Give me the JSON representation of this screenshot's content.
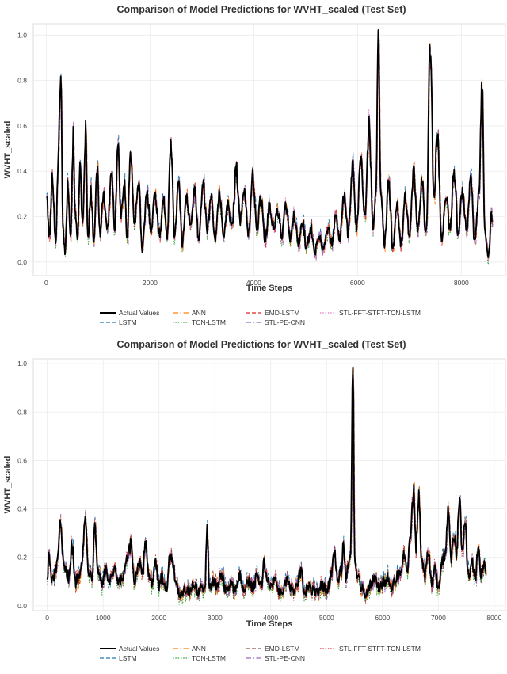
{
  "figure": {
    "legend_labels": [
      "Actual Values",
      "LSTM",
      "ANN",
      "TCN-LSTM",
      "EMD-LSTM",
      "STL-PE-CNN",
      "STL-FFT-STFT-TCN-LSTM"
    ]
  },
  "chart_data": [
    {
      "type": "line",
      "title": "Comparison of Model Predictions for WVHT_scaled (Test Set)",
      "xlabel": "Time Steps",
      "ylabel": "WVHT_scaled",
      "xlim": [
        -250,
        8850
      ],
      "ylim": [
        -0.06,
        1.05
      ],
      "xticks": [
        0,
        2000,
        4000,
        6000,
        8000
      ],
      "yticks": [
        0.0,
        0.2,
        0.4,
        0.6,
        0.8,
        1.0
      ],
      "grid": true,
      "legend_position": "bottom-center",
      "series": [
        {
          "name": "Actual Values",
          "color": "#000000",
          "style": "solid"
        },
        {
          "name": "LSTM",
          "color": "#1f77b4",
          "style": "dashed"
        },
        {
          "name": "ANN",
          "color": "#ff7f0e",
          "style": "dashdot"
        },
        {
          "name": "TCN-LSTM",
          "color": "#2ca02c",
          "style": "dotted"
        },
        {
          "name": "EMD-LSTM",
          "color": "#d62728",
          "style": "dashed"
        },
        {
          "name": "STL-PE-CNN",
          "color": "#9467bd",
          "style": "dashdot"
        },
        {
          "name": "STL-FFT-STFT-TCN-LSTM",
          "color": "#e377c2",
          "style": "dotted"
        }
      ],
      "actual_anchors": [
        [
          0,
          0.3
        ],
        [
          60,
          0.12
        ],
        [
          120,
          0.38
        ],
        [
          180,
          0.08
        ],
        [
          230,
          0.45
        ],
        [
          280,
          0.85
        ],
        [
          320,
          0.15
        ],
        [
          360,
          0.05
        ],
        [
          420,
          0.35
        ],
        [
          470,
          0.12
        ],
        [
          520,
          0.55
        ],
        [
          560,
          0.2
        ],
        [
          600,
          0.1
        ],
        [
          650,
          0.42
        ],
        [
          700,
          0.15
        ],
        [
          760,
          0.58
        ],
        [
          800,
          0.1
        ],
        [
          860,
          0.3
        ],
        [
          920,
          0.08
        ],
        [
          980,
          0.42
        ],
        [
          1040,
          0.12
        ],
        [
          1100,
          0.3
        ],
        [
          1180,
          0.15
        ],
        [
          1260,
          0.4
        ],
        [
          1320,
          0.12
        ],
        [
          1380,
          0.55
        ],
        [
          1440,
          0.2
        ],
        [
          1500,
          0.35
        ],
        [
          1560,
          0.1
        ],
        [
          1620,
          0.48
        ],
        [
          1700,
          0.18
        ],
        [
          1780,
          0.35
        ],
        [
          1850,
          0.05
        ],
        [
          1940,
          0.3
        ],
        [
          2020,
          0.15
        ],
        [
          2100,
          0.3
        ],
        [
          2180,
          0.12
        ],
        [
          2260,
          0.28
        ],
        [
          2330,
          0.1
        ],
        [
          2400,
          0.55
        ],
        [
          2470,
          0.12
        ],
        [
          2550,
          0.35
        ],
        [
          2620,
          0.08
        ],
        [
          2700,
          0.3
        ],
        [
          2780,
          0.15
        ],
        [
          2860,
          0.32
        ],
        [
          2940,
          0.1
        ],
        [
          3020,
          0.35
        ],
        [
          3100,
          0.15
        ],
        [
          3180,
          0.28
        ],
        [
          3260,
          0.1
        ],
        [
          3340,
          0.3
        ],
        [
          3420,
          0.12
        ],
        [
          3500,
          0.25
        ],
        [
          3580,
          0.15
        ],
        [
          3660,
          0.42
        ],
        [
          3740,
          0.18
        ],
        [
          3820,
          0.32
        ],
        [
          3900,
          0.12
        ],
        [
          3980,
          0.38
        ],
        [
          4060,
          0.15
        ],
        [
          4140,
          0.28
        ],
        [
          4220,
          0.1
        ],
        [
          4300,
          0.25
        ],
        [
          4380,
          0.15
        ],
        [
          4460,
          0.22
        ],
        [
          4540,
          0.12
        ],
        [
          4620,
          0.25
        ],
        [
          4700,
          0.1
        ],
        [
          4780,
          0.2
        ],
        [
          4860,
          0.08
        ],
        [
          4940,
          0.18
        ],
        [
          5020,
          0.06
        ],
        [
          5100,
          0.15
        ],
        [
          5180,
          0.05
        ],
        [
          5260,
          0.12
        ],
        [
          5340,
          0.06
        ],
        [
          5420,
          0.15
        ],
        [
          5500,
          0.08
        ],
        [
          5580,
          0.2
        ],
        [
          5660,
          0.1
        ],
        [
          5740,
          0.3
        ],
        [
          5820,
          0.12
        ],
        [
          5900,
          0.42
        ],
        [
          5980,
          0.15
        ],
        [
          6060,
          0.45
        ],
        [
          6140,
          0.2
        ],
        [
          6220,
          0.6
        ],
        [
          6300,
          0.15
        ],
        [
          6350,
          0.3
        ],
        [
          6400,
          0.98
        ],
        [
          6450,
          0.3
        ],
        [
          6520,
          0.08
        ],
        [
          6600,
          0.35
        ],
        [
          6680,
          0.05
        ],
        [
          6760,
          0.25
        ],
        [
          6840,
          0.08
        ],
        [
          6920,
          0.3
        ],
        [
          7000,
          0.1
        ],
        [
          7080,
          0.4
        ],
        [
          7160,
          0.15
        ],
        [
          7240,
          0.35
        ],
        [
          7320,
          0.12
        ],
        [
          7400,
          0.94
        ],
        [
          7470,
          0.3
        ],
        [
          7540,
          0.55
        ],
        [
          7620,
          0.1
        ],
        [
          7700,
          0.3
        ],
        [
          7780,
          0.15
        ],
        [
          7860,
          0.4
        ],
        [
          7940,
          0.12
        ],
        [
          8020,
          0.32
        ],
        [
          8100,
          0.15
        ],
        [
          8180,
          0.38
        ],
        [
          8260,
          0.08
        ],
        [
          8340,
          0.3
        ],
        [
          8400,
          0.78
        ],
        [
          8450,
          0.15
        ],
        [
          8520,
          0.02
        ],
        [
          8580,
          0.2
        ],
        [
          8600,
          0.18
        ]
      ]
    },
    {
      "type": "line",
      "title": "Comparison of Model Predictions for WVHT_scaled (Test Set)",
      "xlabel": "Time Steps",
      "ylabel": "WVHT_scaled",
      "xlim": [
        -250,
        8200
      ],
      "ylim": [
        -0.02,
        1.02
      ],
      "xticks": [
        0,
        1000,
        2000,
        3000,
        4000,
        5000,
        6000,
        7000,
        8000
      ],
      "yticks": [
        0.0,
        0.2,
        0.4,
        0.6,
        0.8,
        1.0
      ],
      "grid": true,
      "legend_position": "bottom-center",
      "series": [
        {
          "name": "Actual Values",
          "color": "#000000",
          "style": "solid"
        },
        {
          "name": "LSTM",
          "color": "#1f77b4",
          "style": "dashed"
        },
        {
          "name": "ANN",
          "color": "#ff7f0e",
          "style": "dashdot"
        },
        {
          "name": "TCN-LSTM",
          "color": "#2ca02c",
          "style": "dotted"
        },
        {
          "name": "EMD-LSTM",
          "color": "#8c564b",
          "style": "dashed"
        },
        {
          "name": "STL-PE-CNN",
          "color": "#9467bd",
          "style": "dashdot"
        },
        {
          "name": "STL-FFT-STFT-TCN-LSTM",
          "color": "#d62728",
          "style": "dotted"
        }
      ],
      "actual_anchors": [
        [
          0,
          0.12
        ],
        [
          30,
          0.21
        ],
        [
          80,
          0.1
        ],
        [
          160,
          0.15
        ],
        [
          230,
          0.32
        ],
        [
          300,
          0.15
        ],
        [
          380,
          0.12
        ],
        [
          440,
          0.25
        ],
        [
          500,
          0.1
        ],
        [
          560,
          0.12
        ],
        [
          620,
          0.2
        ],
        [
          680,
          0.35
        ],
        [
          740,
          0.15
        ],
        [
          800,
          0.12
        ],
        [
          850,
          0.36
        ],
        [
          900,
          0.15
        ],
        [
          980,
          0.1
        ],
        [
          1050,
          0.14
        ],
        [
          1120,
          0.1
        ],
        [
          1200,
          0.14
        ],
        [
          1280,
          0.09
        ],
        [
          1360,
          0.12
        ],
        [
          1440,
          0.2
        ],
        [
          1500,
          0.25
        ],
        [
          1560,
          0.1
        ],
        [
          1640,
          0.18
        ],
        [
          1700,
          0.12
        ],
        [
          1760,
          0.27
        ],
        [
          1820,
          0.12
        ],
        [
          1880,
          0.1
        ],
        [
          1940,
          0.17
        ],
        [
          2000,
          0.08
        ],
        [
          2060,
          0.12
        ],
        [
          2140,
          0.07
        ],
        [
          2200,
          0.22
        ],
        [
          2260,
          0.18
        ],
        [
          2300,
          0.08
        ],
        [
          2380,
          0.05
        ],
        [
          2460,
          0.07
        ],
        [
          2540,
          0.06
        ],
        [
          2620,
          0.09
        ],
        [
          2700,
          0.06
        ],
        [
          2760,
          0.08
        ],
        [
          2820,
          0.06
        ],
        [
          2860,
          0.3
        ],
        [
          2900,
          0.08
        ],
        [
          2960,
          0.1
        ],
        [
          3040,
          0.08
        ],
        [
          3120,
          0.13
        ],
        [
          3200,
          0.06
        ],
        [
          3280,
          0.09
        ],
        [
          3360,
          0.07
        ],
        [
          3440,
          0.12
        ],
        [
          3520,
          0.06
        ],
        [
          3600,
          0.1
        ],
        [
          3680,
          0.08
        ],
        [
          3760,
          0.12
        ],
        [
          3830,
          0.08
        ],
        [
          3880,
          0.18
        ],
        [
          3940,
          0.1
        ],
        [
          4000,
          0.08
        ],
        [
          4080,
          0.12
        ],
        [
          4160,
          0.05
        ],
        [
          4240,
          0.08
        ],
        [
          4300,
          0.1
        ],
        [
          4380,
          0.06
        ],
        [
          4460,
          0.08
        ],
        [
          4540,
          0.14
        ],
        [
          4600,
          0.05
        ],
        [
          4680,
          0.08
        ],
        [
          4760,
          0.06
        ],
        [
          4840,
          0.05
        ],
        [
          4920,
          0.09
        ],
        [
          5000,
          0.06
        ],
        [
          5080,
          0.12
        ],
        [
          5140,
          0.22
        ],
        [
          5200,
          0.1
        ],
        [
          5260,
          0.14
        ],
        [
          5300,
          0.28
        ],
        [
          5340,
          0.12
        ],
        [
          5380,
          0.15
        ],
        [
          5430,
          0.2
        ],
        [
          5470,
          1.0
        ],
        [
          5500,
          0.2
        ],
        [
          5560,
          0.12
        ],
        [
          5620,
          0.08
        ],
        [
          5700,
          0.05
        ],
        [
          5780,
          0.09
        ],
        [
          5860,
          0.12
        ],
        [
          5940,
          0.07
        ],
        [
          6020,
          0.1
        ],
        [
          6100,
          0.12
        ],
        [
          6160,
          0.08
        ],
        [
          6220,
          0.1
        ],
        [
          6300,
          0.14
        ],
        [
          6380,
          0.2
        ],
        [
          6440,
          0.15
        ],
        [
          6500,
          0.3
        ],
        [
          6560,
          0.48
        ],
        [
          6600,
          0.25
        ],
        [
          6650,
          0.45
        ],
        [
          6700,
          0.18
        ],
        [
          6760,
          0.12
        ],
        [
          6820,
          0.22
        ],
        [
          6880,
          0.1
        ],
        [
          6940,
          0.15
        ],
        [
          7000,
          0.06
        ],
        [
          7060,
          0.18
        ],
        [
          7120,
          0.22
        ],
        [
          7180,
          0.4
        ],
        [
          7230,
          0.2
        ],
        [
          7280,
          0.3
        ],
        [
          7320,
          0.22
        ],
        [
          7380,
          0.42
        ],
        [
          7420,
          0.25
        ],
        [
          7480,
          0.32
        ],
        [
          7540,
          0.12
        ],
        [
          7600,
          0.18
        ],
        [
          7660,
          0.12
        ],
        [
          7720,
          0.25
        ],
        [
          7760,
          0.14
        ],
        [
          7820,
          0.18
        ],
        [
          7850,
          0.13
        ]
      ]
    }
  ]
}
